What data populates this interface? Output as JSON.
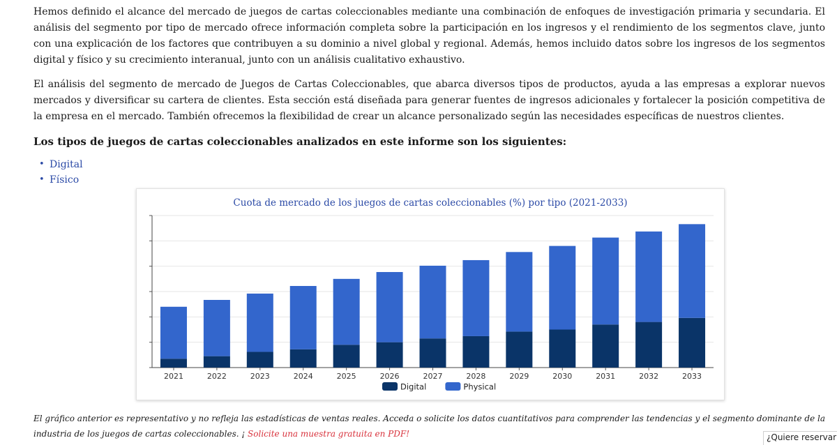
{
  "paragraphs": {
    "p1": "Hemos definido el alcance del mercado de juegos de cartas coleccionables mediante una combinación de enfoques de investigación primaria y secundaria. El análisis del segmento por tipo de mercado ofrece información completa sobre la participación en los ingresos y el rendimiento de los segmentos clave, junto con una explicación de los factores que contribuyen a su dominio a nivel global y regional. Además, hemos incluido datos sobre los ingresos de los segmentos digital y físico y su crecimiento interanual, junto con un análisis cualitativo exhaustivo.",
    "p2": "El análisis del segmento de mercado de Juegos de Cartas Coleccionables, que abarca diversos tipos de productos, ayuda a las empresas a explorar nuevos mercados y diversificar su cartera de clientes. Esta sección está diseñada para generar fuentes de ingresos adicionales y fortalecer la posición competitiva de la empresa en el mercado. También ofrecemos la flexibilidad de crear un alcance personalizado según las necesidades específicas de nuestros clientes."
  },
  "heading": "Los tipos de juegos de cartas coleccionables analizados en este informe son los siguientes:",
  "types": [
    "Digital",
    "Físico"
  ],
  "bullet_char": "•",
  "colors": {
    "digital": "#0a3468",
    "physical": "#3366cc",
    "title": "#2b4aa6",
    "link": "#2b4aa6",
    "cta": "#d8323c"
  },
  "chart_data": {
    "type": "bar",
    "stacked": true,
    "title": "Cuota de mercado de los juegos de cartas coleccionables (%) por tipo (2021-2033)",
    "categories": [
      "2021",
      "2022",
      "2023",
      "2024",
      "2025",
      "2026",
      "2027",
      "2028",
      "2029",
      "2030",
      "2031",
      "2032",
      "2033"
    ],
    "series": [
      {
        "name": "Digital",
        "color": "#0a3468",
        "values": [
          3.5,
          4.5,
          6.2,
          7.2,
          9.0,
          10.0,
          11.5,
          12.4,
          14.2,
          15.0,
          17.0,
          18.0,
          19.6
        ]
      },
      {
        "name": "Physical",
        "color": "#3366cc",
        "values": [
          20.5,
          22.2,
          23.0,
          25.0,
          26.0,
          27.7,
          28.7,
          30.0,
          31.4,
          33.0,
          34.3,
          35.7,
          37.0
        ]
      }
    ],
    "xlabel": "",
    "ylabel": "",
    "ylim": [
      0,
      60
    ],
    "y_gridlines": [
      0,
      10,
      20,
      30,
      40,
      50,
      60
    ],
    "y_tick_labels_shown": false,
    "grid": true,
    "legend": "bottom"
  },
  "note": {
    "text": "El gráfico anterior es representativo y no refleja las estadísticas de ventas reales. Acceda o solicite los datos cuantitativos para comprender las tendencias y el segmento dominante de la industria de los juegos de cartas coleccionables. ¡ ",
    "cta": "Solicite una muestra gratuita en PDF!"
  },
  "reserve_widget": "¿Quiere reservar un"
}
